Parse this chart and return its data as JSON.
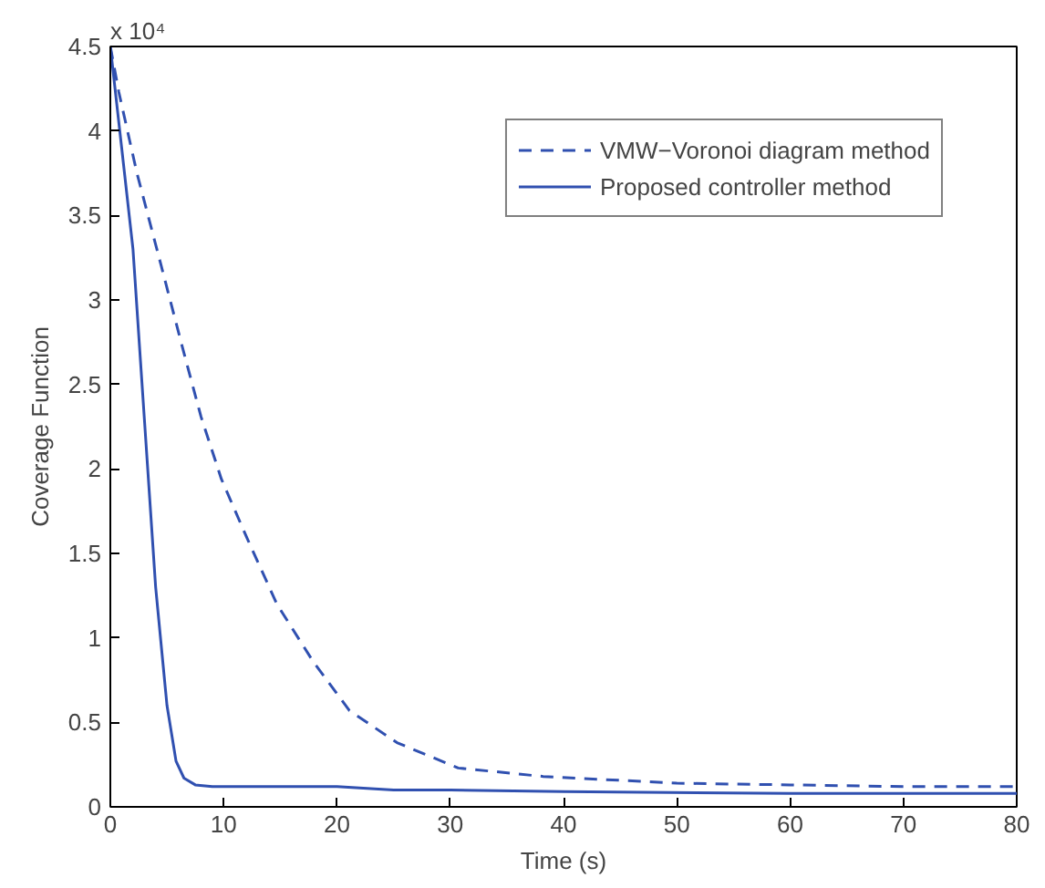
{
  "chart_data": {
    "type": "line",
    "xlabel": "Time (s)",
    "ylabel": "Coverage Function",
    "annotations": [
      "x 10⁴"
    ],
    "xlim": [
      0,
      80
    ],
    "xticks": [
      0,
      10,
      20,
      30,
      40,
      50,
      60,
      70,
      80
    ],
    "ylim": [
      0,
      4.5
    ],
    "yticks": [
      0,
      0.5,
      1,
      1.5,
      2,
      2.5,
      3,
      3.5,
      4,
      4.5
    ],
    "grid": false,
    "legend": "top right",
    "series": [
      {
        "name": "VMW−Voronoi diagram method",
        "color": "#3050b0",
        "line_style": "dashed",
        "x": [
          0,
          0.75,
          2.35,
          4.5,
          6.4,
          8,
          9.8,
          12,
          14.7,
          17.9,
          21.1,
          25.3,
          30.7,
          38.2,
          50,
          60,
          70,
          80
        ],
        "values": [
          4.5,
          4.23,
          3.75,
          3.2,
          2.71,
          2.31,
          1.94,
          1.6,
          1.2,
          0.86,
          0.57,
          0.38,
          0.23,
          0.18,
          0.14,
          0.13,
          0.12,
          0.12
        ]
      },
      {
        "name": "Proposed controller method",
        "color": "#3050b0",
        "line_style": "solid",
        "x": [
          0,
          0.5,
          1,
          2,
          3,
          4,
          5,
          5.8,
          6.5,
          7.5,
          9,
          15,
          20,
          25,
          30,
          40,
          60,
          80
        ],
        "values": [
          4.5,
          4.2,
          3.9,
          3.3,
          2.3,
          1.3,
          0.6,
          0.27,
          0.17,
          0.13,
          0.12,
          0.12,
          0.12,
          0.1,
          0.1,
          0.09,
          0.08,
          0.08
        ]
      }
    ]
  }
}
